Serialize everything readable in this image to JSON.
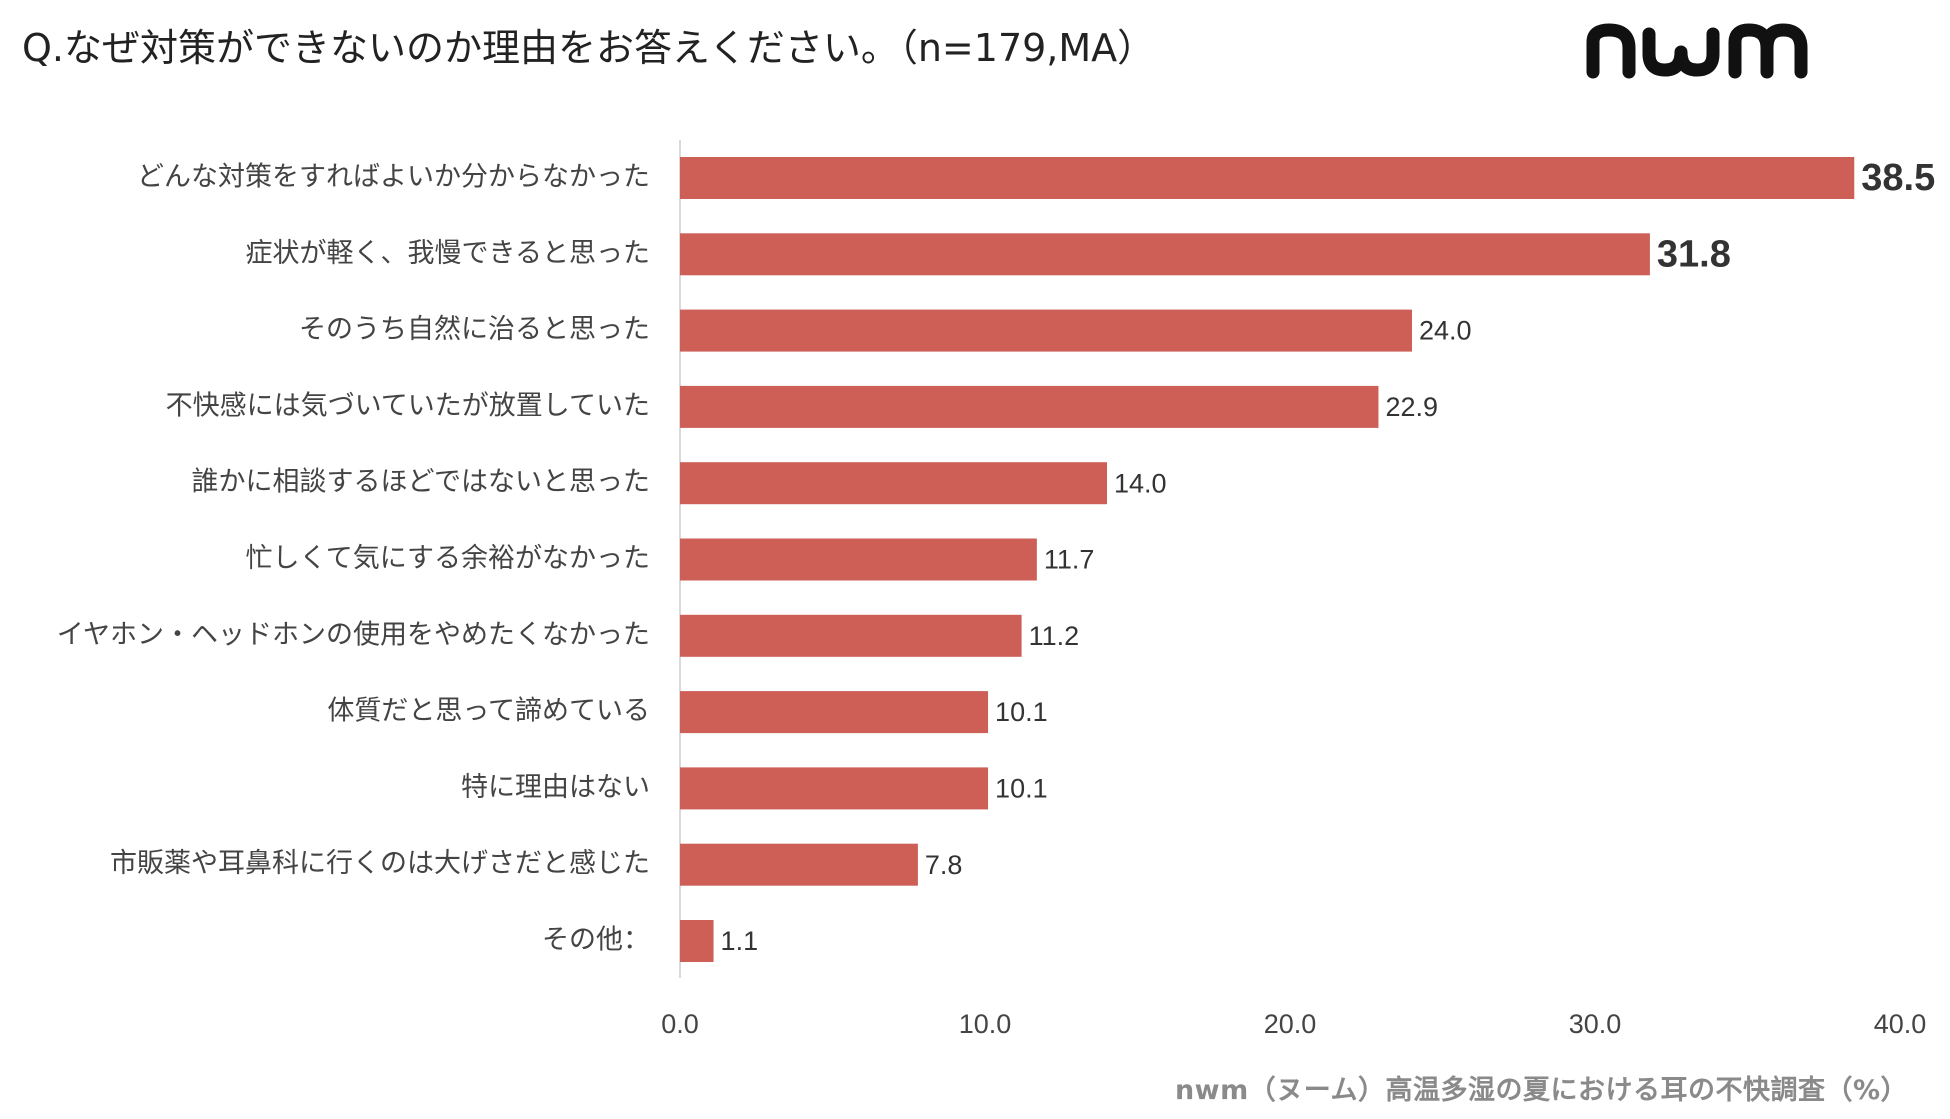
{
  "header": {
    "question": "Q.なぜ対策ができないのか理由をお答えください。（n=179,MA）"
  },
  "logo": {
    "text": "nwm"
  },
  "footer": {
    "source": "nwm（ヌーム）高温多湿の夏における耳の不快調査（%）"
  },
  "colors": {
    "bar": "#cd5f57",
    "axis_line": "#d9d9d9",
    "label": "#444444",
    "value": "#333333",
    "source": "#8a8a8a"
  },
  "chart_data": {
    "type": "bar",
    "orientation": "horizontal",
    "categories": [
      "どんな対策をすればよいか分からなかった",
      "症状が軽く、我慢できると思った",
      "そのうち自然に治ると思った",
      "不快感には気づいていたが放置していた",
      "誰かに相談するほどではないと思った",
      "忙しくて気にする余裕がなかった",
      "イヤホン・ヘッドホンの使用をやめたくなかった",
      "体質だと思って諦めている",
      "特に理由はない",
      "市販薬や耳鼻科に行くのは大げさだと感じた",
      "その他："
    ],
    "values": [
      38.5,
      31.8,
      24.0,
      22.9,
      14.0,
      11.7,
      11.2,
      10.1,
      10.1,
      7.8,
      1.1
    ],
    "value_labels": [
      "38.5",
      "31.8",
      "24.0",
      "22.9",
      "14.0",
      "11.7",
      "11.2",
      "10.1",
      "10.1",
      "7.8",
      "1.1"
    ],
    "emphasized_count": 2,
    "xlim": [
      0,
      40
    ],
    "x_ticks": [
      0,
      10,
      20,
      30,
      40
    ],
    "x_tick_labels": [
      "0.0",
      "10.0",
      "20.0",
      "30.0",
      "40.0"
    ],
    "grid": false,
    "legend": "none"
  }
}
